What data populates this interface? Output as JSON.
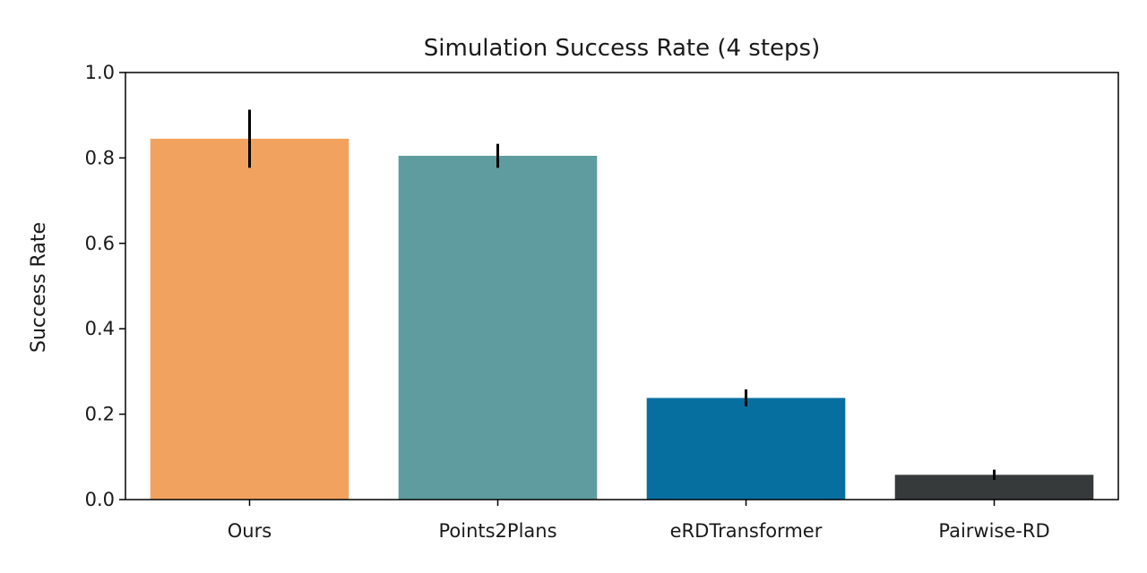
{
  "chart_data": {
    "type": "bar",
    "title": "Simulation Success Rate (4 steps)",
    "xlabel": "",
    "ylabel": "Success Rate",
    "categories": [
      "Ours",
      "Points2Plans",
      "eRDTransformer",
      "Pairwise-RD"
    ],
    "values": [
      0.845,
      0.805,
      0.238,
      0.058
    ],
    "error": [
      0.068,
      0.028,
      0.02,
      0.012
    ],
    "colors": [
      "#f2a25f",
      "#5f9c9f",
      "#066fa0",
      "#363a3a"
    ],
    "ylim": [
      0,
      1.0
    ],
    "yticks": [
      0.0,
      0.2,
      0.4,
      0.6,
      0.8,
      1.0
    ],
    "ytick_labels": [
      "0.0",
      "0.2",
      "0.4",
      "0.6",
      "0.8",
      "1.0"
    ],
    "grid": false,
    "legend": "none"
  }
}
